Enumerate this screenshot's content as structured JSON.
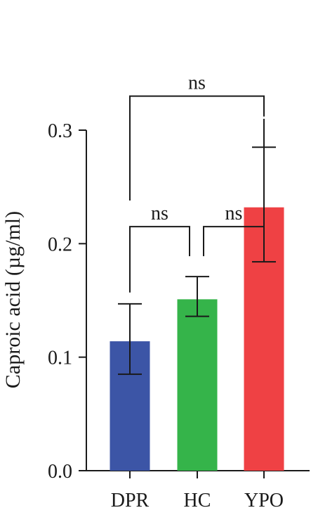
{
  "chart_data": {
    "type": "bar",
    "categories": [
      "DPR",
      "HC",
      "YPO"
    ],
    "values": [
      0.114,
      0.151,
      0.232
    ],
    "error_low": [
      0.085,
      0.136,
      0.184
    ],
    "error_high": [
      0.147,
      0.171,
      0.285
    ],
    "colors": [
      "#3c55a6",
      "#35b44a",
      "#ef4144"
    ],
    "ylabel": "Caproic acid (µg/ml)",
    "ylim": [
      0,
      0.3
    ],
    "yticks": [
      "0.0",
      "0.1",
      "0.2",
      "0.3"
    ],
    "grid": false,
    "legend": "none",
    "annotations": [
      {
        "label": "ns",
        "from": "DPR",
        "to": "YPO",
        "tip_values": [
          0.238,
          0.312
        ],
        "bracket": 0.33
      },
      {
        "label": "ns",
        "from": "DPR",
        "to": "HC",
        "tip_values": [
          0.157,
          0.189
        ],
        "bracket": 0.215
      },
      {
        "label": "ns",
        "from": "HC",
        "to": "YPO",
        "tip_values": [
          0.189,
          0.31
        ],
        "bracket": 0.215
      }
    ]
  }
}
